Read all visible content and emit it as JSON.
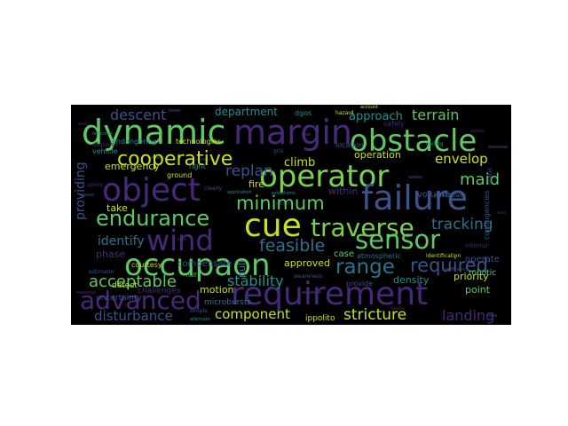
{
  "chart_data": {
    "type": "wordcloud",
    "words": [
      {
        "text": "dynamic",
        "color": "#5ec962"
      },
      {
        "text": "margin",
        "color": "#482878"
      },
      {
        "text": "obstacle",
        "color": "#5ec962"
      },
      {
        "text": "cooperative",
        "color": "#c8e020"
      },
      {
        "text": "operator",
        "color": "#7ad151"
      },
      {
        "text": "object",
        "color": "#482878"
      },
      {
        "text": "failure",
        "color": "#3b528b"
      },
      {
        "text": "minimum",
        "color": "#5ec962"
      },
      {
        "text": "cue",
        "color": "#c8e020"
      },
      {
        "text": "traverse",
        "color": "#7ad151"
      },
      {
        "text": "endurance",
        "color": "#5ec962"
      },
      {
        "text": "wind",
        "color": "#482878"
      },
      {
        "text": "sensor",
        "color": "#5ec962"
      },
      {
        "text": "occupaon",
        "color": "#5ec962"
      },
      {
        "text": "feasible",
        "color": "#2c728e"
      },
      {
        "text": "requirement",
        "color": "#482878"
      },
      {
        "text": "advanced",
        "color": "#482878"
      },
      {
        "text": "range",
        "color": "#2c728e"
      },
      {
        "text": "required",
        "color": "#3b528b"
      },
      {
        "text": "acceptable",
        "color": "#5ec962"
      },
      {
        "text": "stability",
        "color": "#21918c"
      },
      {
        "text": "disturbance",
        "color": "#3b528b"
      },
      {
        "text": "component",
        "color": "#c8e020"
      },
      {
        "text": "stricture",
        "color": "#c8e020"
      },
      {
        "text": "landing",
        "color": "#482878"
      },
      {
        "text": "descent",
        "color": "#3b528b"
      },
      {
        "text": "department",
        "color": "#21918c"
      },
      {
        "text": "approach",
        "color": "#21918c"
      },
      {
        "text": "terrain",
        "color": "#5ec962"
      },
      {
        "text": "replan",
        "color": "#3b528b"
      },
      {
        "text": "climb",
        "color": "#c8e020"
      },
      {
        "text": "envelop",
        "color": "#c8e020"
      },
      {
        "text": "maid",
        "color": "#5ec962"
      },
      {
        "text": "tracking",
        "color": "#2c728e"
      },
      {
        "text": "identify",
        "color": "#2c728e"
      },
      {
        "text": "providing",
        "color": "#3b528b"
      },
      {
        "text": "emergency",
        "color": "#c8e020"
      },
      {
        "text": "fire",
        "color": "#c8e020"
      },
      {
        "text": "within",
        "color": "#482878"
      },
      {
        "text": "operation",
        "color": "#c8e020"
      },
      {
        "text": "approved",
        "color": "#c8e020"
      },
      {
        "text": "density",
        "color": "#21918c"
      },
      {
        "text": "priority",
        "color": "#c8e020"
      },
      {
        "text": "point",
        "color": "#5ec962"
      },
      {
        "text": "motion",
        "color": "#c8e020"
      },
      {
        "text": "take",
        "color": "#c8e020"
      },
      {
        "text": "phase",
        "color": "#482878"
      },
      {
        "text": "case",
        "color": "#5ec962"
      },
      {
        "text": "atmospheric",
        "color": "#2c728e"
      },
      {
        "text": "pull",
        "color": "#2c728e"
      },
      {
        "text": "volume",
        "color": "#3b528b"
      },
      {
        "text": "operate",
        "color": "#3b528b"
      },
      {
        "text": "robotic",
        "color": "#5ec962"
      },
      {
        "text": "detect",
        "color": "#c8e020"
      },
      {
        "text": "uncertainty",
        "color": "#3b528b"
      },
      {
        "text": "challenges",
        "color": "#482878"
      },
      {
        "text": "microbursts",
        "color": "#2c728e"
      },
      {
        "text": "ippolito",
        "color": "#c8e020"
      },
      {
        "text": "endangering",
        "color": "#21918c"
      },
      {
        "text": "technologies",
        "color": "#c8e020"
      },
      {
        "text": "location",
        "color": "#3b528b"
      },
      {
        "text": "vehicle",
        "color": "#21918c"
      },
      {
        "text": "degraded",
        "color": "#482878"
      },
      {
        "text": "right",
        "color": "#21918c"
      },
      {
        "text": "courtesy",
        "color": "#c8e020"
      },
      {
        "text": "ground",
        "color": "#c8e020"
      },
      {
        "text": "safely",
        "color": "#482878"
      },
      {
        "text": "provide",
        "color": "#3b528b"
      },
      {
        "text": "contingencies",
        "color": "#3b528b"
      },
      {
        "text": "identification",
        "color": "#c8e020"
      },
      {
        "text": "dgos",
        "color": "#21918c"
      },
      {
        "text": "hazard",
        "color": "#c8e020"
      },
      {
        "text": "compensate",
        "color": "#3b528b"
      },
      {
        "text": "estimator",
        "color": "#3b528b"
      },
      {
        "text": "spoos",
        "color": "#482878"
      },
      {
        "text": "application",
        "color": "#21918c"
      },
      {
        "text": "establisms",
        "color": "#21918c"
      },
      {
        "text": "awareness",
        "color": "#3b528b"
      },
      {
        "text": "minimizaon",
        "color": "#2c728e"
      },
      {
        "text": "coefficiency",
        "color": "#3b528b"
      },
      {
        "text": "interrur",
        "color": "#482878"
      },
      {
        "text": "simple",
        "color": "#3b528b"
      },
      {
        "text": "alternate",
        "color": "#21918c"
      },
      {
        "text": "half",
        "color": "#5ec962"
      },
      {
        "text": "gris",
        "color": "#3b528b"
      },
      {
        "text": "reflection",
        "color": "#21918c"
      },
      {
        "text": "ceiling",
        "color": "#21918c"
      },
      {
        "text": "account",
        "color": "#c8e020"
      },
      {
        "text": "tower",
        "color": "#3b528b"
      },
      {
        "text": "clearly",
        "color": "#3b528b"
      },
      {
        "text": "static",
        "color": "#3b528b"
      }
    ]
  }
}
